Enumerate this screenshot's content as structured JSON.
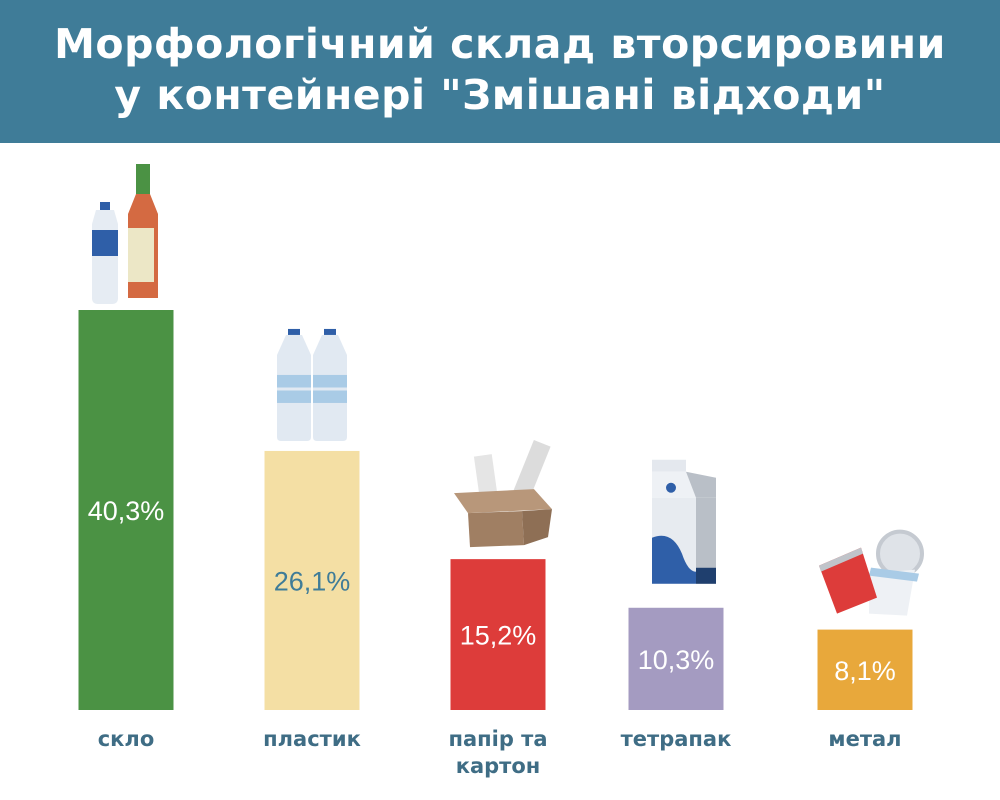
{
  "header": {
    "title_line1": "Морфологічний склад вторсировини",
    "title_line2": "у контейнері \"Змішані відходи\""
  },
  "chart_data": {
    "type": "bar",
    "title": "Морфологічний склад вторсировини у контейнері \"Змішані відходи\"",
    "categories": [
      {
        "lines": [
          "скло"
        ]
      },
      {
        "lines": [
          "пластик"
        ]
      },
      {
        "lines": [
          "папір та",
          "картон"
        ]
      },
      {
        "lines": [
          "тетрапак"
        ]
      },
      {
        "lines": [
          "метал"
        ]
      }
    ],
    "values": [
      40.3,
      26.1,
      15.2,
      10.3,
      8.1
    ],
    "value_labels": [
      "40,3%",
      "26,1%",
      "15,2%",
      "10,3%",
      "8,1%"
    ],
    "bar_colors": [
      "#4b9244",
      "#f4dfa4",
      "#dd3c3a",
      "#a49bc1",
      "#e8a83b"
    ],
    "value_label_colors": [
      "#ffffff",
      "#3f7c98",
      "#ffffff",
      "#ffffff",
      "#ffffff"
    ],
    "category_label_color": "#3f6d85",
    "icons": [
      "bottles-icon",
      "plastic-bottles-icon",
      "paper-box-icon",
      "milk-carton-icon",
      "cans-icon"
    ],
    "unit": "%",
    "ylim": [
      0,
      40.3
    ]
  }
}
